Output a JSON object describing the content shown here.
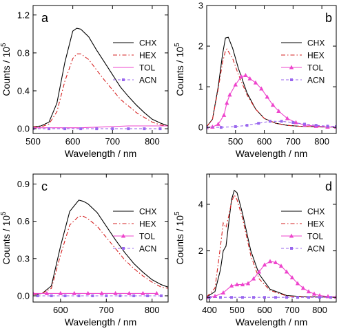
{
  "chart_data": [
    {
      "type": "line",
      "panel_label": "a",
      "xlabel": "Wavelength / nm",
      "ylabel": "Counts / 10^5",
      "ylabel_main": "Counts / 10",
      "ylabel_exp": "5",
      "xlim": [
        500,
        840
      ],
      "ylim": [
        -0.05,
        1.3
      ],
      "xticks": [
        500,
        600,
        700,
        800
      ],
      "yticks": [
        "0.0",
        "0.4",
        "0.8",
        "1.2"
      ],
      "grid": false,
      "legend_position": "top-right",
      "series": [
        {
          "name": "CHX",
          "color": "#000000",
          "dash": "",
          "marker": "none",
          "x": [
            500,
            520,
            540,
            560,
            580,
            600,
            610,
            620,
            640,
            660,
            680,
            700,
            720,
            740,
            760,
            780,
            800,
            820,
            840
          ],
          "y": [
            0.02,
            0.03,
            0.07,
            0.27,
            0.7,
            1.03,
            1.06,
            1.05,
            0.97,
            0.83,
            0.7,
            0.57,
            0.44,
            0.34,
            0.25,
            0.17,
            0.1,
            0.06,
            0.03
          ]
        },
        {
          "name": "HEX",
          "color": "#d62020",
          "dash": "6,3,1.5,3",
          "marker": "none",
          "x": [
            500,
            520,
            540,
            560,
            580,
            600,
            610,
            620,
            640,
            660,
            680,
            700,
            720,
            740,
            760,
            780,
            800,
            820,
            840
          ],
          "y": [
            0.02,
            0.02,
            0.05,
            0.18,
            0.5,
            0.74,
            0.79,
            0.79,
            0.73,
            0.62,
            0.51,
            0.41,
            0.31,
            0.24,
            0.17,
            0.12,
            0.07,
            0.04,
            0.03
          ]
        },
        {
          "name": "TOL",
          "color": "#ee44cc",
          "dash": "",
          "marker": "none",
          "x": [
            500,
            560,
            620,
            680,
            740,
            800,
            840
          ],
          "y": [
            0.01,
            0.01,
            0.01,
            0.02,
            0.03,
            0.03,
            0.03
          ]
        },
        {
          "name": "ACN",
          "color": "#9966ee",
          "dash": "4,3",
          "marker": "square",
          "x": [
            500,
            540,
            580,
            620,
            660,
            700,
            740,
            780,
            820
          ],
          "y": [
            0.0,
            0.0,
            0.0,
            0.0,
            0.0,
            0.0,
            0.0,
            0.0,
            0.0
          ]
        }
      ]
    },
    {
      "type": "line",
      "panel_label": "b",
      "xlabel": "Wavelength / nm",
      "ylabel": "Counts / 10^5",
      "ylabel_main": "Counts / 10",
      "ylabel_exp": "5",
      "xlim": [
        400,
        850
      ],
      "ylim": [
        -0.15,
        3.0
      ],
      "xticks": [
        500,
        600,
        700,
        800
      ],
      "yticks": [
        "0",
        "1",
        "2",
        "3"
      ],
      "grid": false,
      "legend_position": "top-right",
      "series": [
        {
          "name": "CHX",
          "color": "#000000",
          "dash": "",
          "marker": "none",
          "x": [
            400,
            420,
            440,
            455,
            465,
            475,
            490,
            510,
            540,
            570,
            600,
            640,
            680,
            720,
            760,
            800,
            850
          ],
          "y": [
            0.02,
            0.2,
            1.0,
            1.8,
            2.2,
            2.22,
            1.95,
            1.45,
            0.85,
            0.45,
            0.22,
            0.1,
            0.05,
            0.03,
            0.02,
            0.01,
            0.01
          ]
        },
        {
          "name": "HEX",
          "color": "#d62020",
          "dash": "6,3,1.5,3",
          "marker": "none",
          "x": [
            400,
            420,
            440,
            455,
            465,
            470,
            490,
            510,
            540,
            570,
            600,
            640,
            680,
            720,
            760,
            800,
            850
          ],
          "y": [
            0.02,
            0.2,
            0.95,
            1.6,
            1.88,
            1.93,
            1.7,
            1.3,
            0.8,
            0.45,
            0.22,
            0.1,
            0.05,
            0.03,
            0.02,
            0.01,
            0.01
          ]
        },
        {
          "name": "TOL",
          "color": "#ee44cc",
          "dash": "",
          "marker": "triangle",
          "x": [
            400,
            420,
            440,
            460,
            470,
            480,
            500,
            520,
            535,
            550,
            570,
            590,
            610,
            630,
            650,
            680,
            710,
            740,
            780,
            820,
            850
          ],
          "y": [
            0.0,
            0.01,
            0.08,
            0.3,
            0.6,
            0.8,
            1.05,
            1.25,
            1.28,
            1.2,
            1.1,
            0.95,
            0.75,
            0.55,
            0.4,
            0.22,
            0.12,
            0.06,
            0.03,
            0.01,
            0.01
          ]
        },
        {
          "name": "ACN",
          "color": "#9966ee",
          "dash": "4,3",
          "marker": "square",
          "x": [
            400,
            450,
            500,
            540,
            580,
            620,
            660,
            700,
            740,
            780,
            820,
            850
          ],
          "y": [
            0.0,
            0.0,
            0.02,
            0.05,
            0.1,
            0.15,
            0.15,
            0.12,
            0.08,
            0.05,
            0.03,
            0.02
          ]
        }
      ]
    },
    {
      "type": "line",
      "panel_label": "c",
      "xlabel": "Wavelength / nm",
      "ylabel": "Counts / 10^5",
      "ylabel_main": "Counts / 10",
      "ylabel_exp": "5",
      "xlim": [
        540,
        835
      ],
      "ylim": [
        -0.05,
        0.98
      ],
      "xticks": [
        600,
        700,
        800
      ],
      "yticks": [
        "0.0",
        "0.3",
        "0.6",
        "0.9"
      ],
      "grid": false,
      "legend_position": "top-right",
      "series": [
        {
          "name": "CHX",
          "color": "#000000",
          "dash": "",
          "marker": "none",
          "x": [
            540,
            560,
            580,
            600,
            620,
            640,
            650,
            660,
            680,
            700,
            720,
            740,
            760,
            780,
            800,
            820,
            835
          ],
          "y": [
            0.01,
            0.02,
            0.08,
            0.4,
            0.68,
            0.77,
            0.76,
            0.74,
            0.67,
            0.56,
            0.45,
            0.35,
            0.26,
            0.19,
            0.13,
            0.09,
            0.07
          ]
        },
        {
          "name": "HEX",
          "color": "#d62020",
          "dash": "6,3,1.5,3",
          "marker": "none",
          "x": [
            540,
            560,
            580,
            600,
            620,
            640,
            650,
            660,
            680,
            700,
            720,
            740,
            760,
            780,
            800,
            820,
            835
          ],
          "y": [
            0.01,
            0.02,
            0.06,
            0.33,
            0.57,
            0.64,
            0.64,
            0.62,
            0.56,
            0.47,
            0.38,
            0.29,
            0.22,
            0.16,
            0.11,
            0.07,
            0.06
          ]
        },
        {
          "name": "TOL",
          "color": "#ee44cc",
          "dash": "",
          "marker": "triangle",
          "x": [
            540,
            570,
            600,
            630,
            660,
            690,
            720,
            750,
            780,
            810
          ],
          "y": [
            0.02,
            0.02,
            0.02,
            0.02,
            0.02,
            0.02,
            0.02,
            0.02,
            0.02,
            0.02
          ]
        },
        {
          "name": "ACN",
          "color": "#9966ee",
          "dash": "4,3",
          "marker": "square",
          "x": [
            550,
            580,
            610,
            640,
            670,
            700,
            730,
            760,
            790,
            820
          ],
          "y": [
            0.0,
            0.0,
            0.0,
            0.0,
            0.0,
            0.0,
            0.0,
            0.0,
            0.0,
            0.0
          ]
        }
      ]
    },
    {
      "type": "line",
      "panel_label": "d",
      "xlabel": "Wavelength / nm",
      "ylabel": "Counts / 10^5",
      "ylabel_main": "Counts / 10",
      "ylabel_exp": "5",
      "xlim": [
        390,
        860
      ],
      "ylim": [
        -0.2,
        5.3
      ],
      "xticks": [
        400,
        500,
        600,
        700,
        800
      ],
      "yticks": [
        "0",
        "2",
        "4"
      ],
      "grid": false,
      "legend_position": "top-right",
      "series": [
        {
          "name": "CHX",
          "color": "#000000",
          "dash": "",
          "marker": "none",
          "x": [
            390,
            420,
            440,
            450,
            460,
            470,
            480,
            490,
            500,
            520,
            550,
            580,
            620,
            680,
            740,
            800,
            860
          ],
          "y": [
            0.02,
            0.25,
            1.2,
            2.0,
            2.2,
            3.2,
            4.2,
            4.6,
            4.5,
            3.6,
            2.0,
            1.0,
            0.35,
            0.08,
            0.03,
            0.02,
            0.01
          ]
        },
        {
          "name": "HEX",
          "color": "#d62020",
          "dash": "6,3,1.5,3",
          "marker": "none",
          "x": [
            390,
            420,
            440,
            450,
            460,
            470,
            480,
            490,
            500,
            520,
            550,
            580,
            620,
            680,
            740,
            800,
            860
          ],
          "y": [
            0.02,
            0.4,
            2.2,
            3.2,
            3.0,
            3.5,
            4.1,
            4.4,
            4.2,
            3.4,
            1.8,
            0.8,
            0.3,
            0.06,
            0.02,
            0.01,
            0.01
          ]
        },
        {
          "name": "TOL",
          "color": "#ee44cc",
          "dash": "",
          "marker": "triangle",
          "x": [
            390,
            420,
            450,
            480,
            500,
            520,
            540,
            560,
            580,
            600,
            620,
            640,
            660,
            680,
            700,
            720,
            740,
            760,
            780,
            800,
            830,
            860
          ],
          "y": [
            0.0,
            0.05,
            0.2,
            0.5,
            0.55,
            0.55,
            0.6,
            0.8,
            1.1,
            1.4,
            1.55,
            1.5,
            1.35,
            1.1,
            0.85,
            0.6,
            0.4,
            0.25,
            0.15,
            0.08,
            0.04,
            0.02
          ]
        },
        {
          "name": "ACN",
          "color": "#9966ee",
          "dash": "4,3",
          "marker": "square",
          "x": [
            400,
            440,
            480,
            520,
            560,
            600,
            640,
            680,
            720,
            760,
            800,
            840
          ],
          "y": [
            0.0,
            0.0,
            0.0,
            0.0,
            0.0,
            0.0,
            0.0,
            0.0,
            0.0,
            0.0,
            0.0,
            0.0
          ]
        }
      ]
    }
  ]
}
